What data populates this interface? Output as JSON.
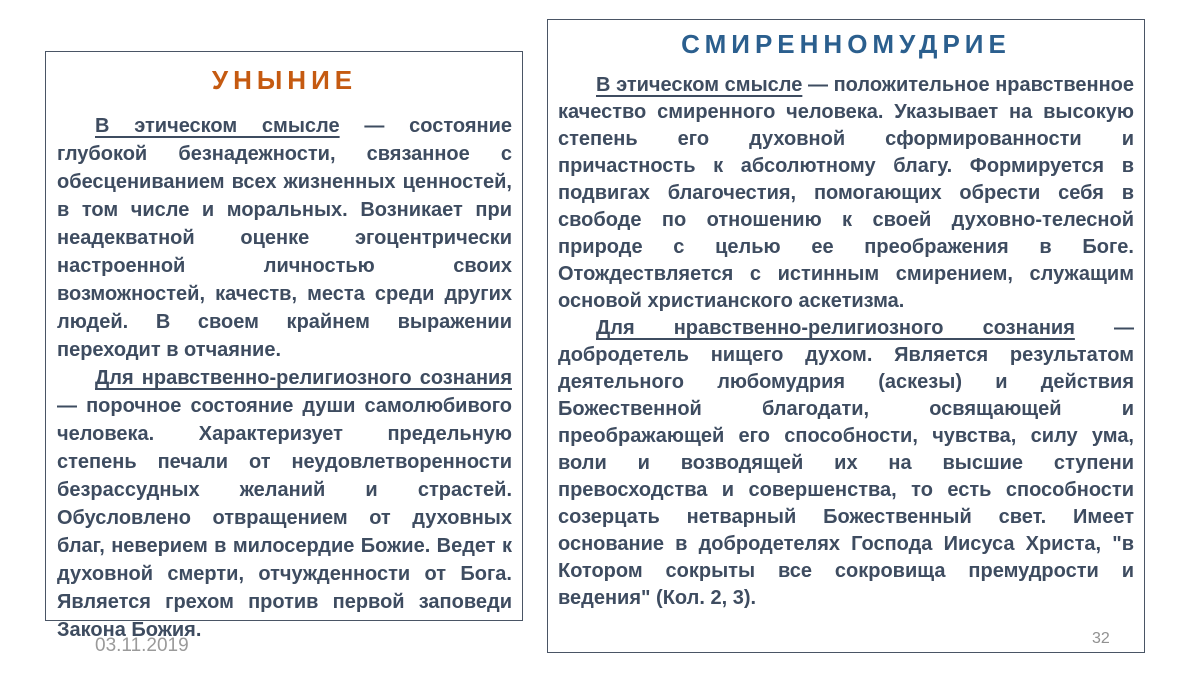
{
  "left_box": {
    "title": "УНЫНИЕ",
    "title_color": "#c55a11",
    "paragraphs": [
      {
        "lead": "В этическом смысле",
        "rest": " — состояние глубокой безнадежности, связанное с обесцениванием всех жизненных ценностей, в том числе и моральных. Возникает при неадекватной оценке эгоцентрически настроенной личностью своих возможностей, качеств, места среди других людей. В своем крайнем выражении переходит в отчаяние."
      },
      {
        "lead": "Для нравственно-религиозного сознания",
        "rest": " — порочное состояние души самолюбивого человека. Характеризует предельную степень печали от неудовлетворенности безрассудных желаний и страстей. Обусловлено отвращением от духовных благ, неверием в милосердие Божие. Ведет к духовной смерти, отчужденности от Бога. Является грехом против первой заповеди Закона Божия."
      }
    ]
  },
  "right_box": {
    "title": "СМИРЕННОМУДРИЕ",
    "title_color": "#2b5f8e",
    "paragraphs": [
      {
        "lead": "В этическом смысле",
        "rest": " — положительное нравственное качество смиренного человека. Указывает на высокую степень его духовной сформированности и причастность к абсолютному благу. Формируется в подвигах благочестия, помогающих обрести себя в свободе по отношению к своей духовно-телесной природе с целью ее преображения в Боге. Отождествляется с истинным смирением, служащим основой христианского аскетизма."
      },
      {
        "lead": "Для нравственно-религиозного сознания",
        "rest": " — добродетель нищего духом. Является результатом деятельного любомудрия (аскезы) и действия Божественной благодати, освящающей и преображающей его способности, чувства, силу ума, воли и возводящей их на высшие ступени превосходства и совершенства, то есть способности созерцать нетварный Божественный свет. Имеет основание в добродетелях Господа Иисуса Христа, \"в Котором сокрыты все сокровища премудрости и ведения\" (Кол. 2, 3)."
      }
    ]
  },
  "footer": {
    "date": "03.11.2019",
    "page_number": "32"
  },
  "colors": {
    "body_text": "#3e4c60",
    "box_border": "#4a5565",
    "footer_text": "#9a9a9a",
    "background": "#ffffff"
  }
}
